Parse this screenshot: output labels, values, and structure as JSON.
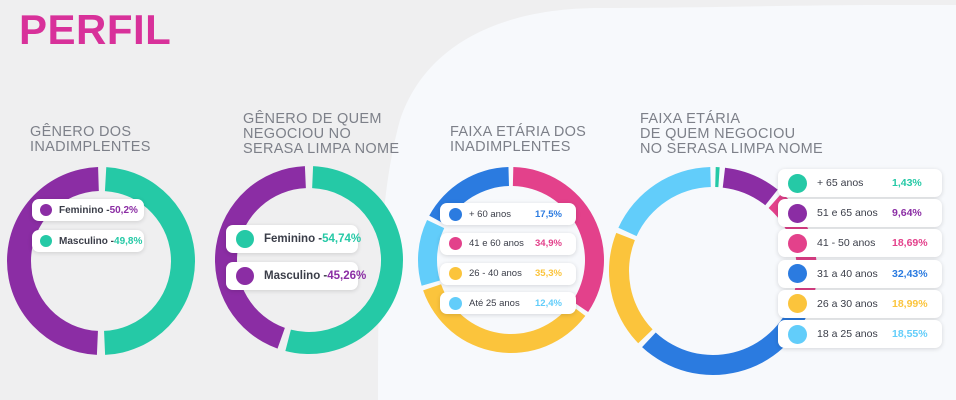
{
  "page": {
    "title": "PERFIL"
  },
  "colors": {
    "title": "#d8319a",
    "purple": "#8b2da4",
    "teal": "#25c9a6",
    "blue": "#2b7be0",
    "pink": "#e3418b",
    "yellow": "#fbc43c",
    "lightblue": "#62cdfa"
  },
  "chart_data": [
    {
      "type": "pie",
      "title": "GÊNERO DOS\nINADIMPLENTES",
      "categories": [
        "Feminino",
        "Masculino"
      ],
      "values": [
        50.2,
        49.8
      ],
      "value_labels": [
        "50,2%",
        "49,8%"
      ],
      "colors": [
        "#8b2da4",
        "#25c9a6"
      ]
    },
    {
      "type": "pie",
      "title": "GÊNERO DE QUEM\nNEGOCIOU NO\nSERASA LIMPA NOME",
      "categories": [
        "Feminino",
        "Masculino"
      ],
      "values": [
        54.74,
        45.26
      ],
      "value_labels": [
        "54,74%",
        "45,26%"
      ],
      "colors": [
        "#25c9a6",
        "#8b2da4"
      ]
    },
    {
      "type": "pie",
      "title": "FAIXA ETÁRIA DOS\nINADIMPLENTES",
      "categories": [
        "+ 60 anos",
        "41 e 60 anos",
        "26 - 40 anos",
        "Até 25 anos"
      ],
      "values": [
        17.5,
        34.9,
        35.3,
        12.4
      ],
      "value_labels": [
        "17,5%",
        "34,9%",
        "35,3%",
        "12,4%"
      ],
      "colors": [
        "#2b7be0",
        "#e3418b",
        "#fbc43c",
        "#62cdfa"
      ]
    },
    {
      "type": "pie",
      "title": "FAIXA ETÁRIA\nDE QUEM NEGOCIOU\nNO SERASA LIMPA NOME",
      "categories": [
        "+ 65 anos",
        "51 e 65 anos",
        "41 - 50 anos",
        "31 a 40 anos",
        "26 a 30 anos",
        "18 a 25 anos"
      ],
      "values": [
        1.43,
        9.64,
        18.69,
        32.43,
        18.99,
        18.55
      ],
      "value_labels": [
        "1,43%",
        "9,64%",
        "18,69%",
        "32,43%",
        "18,99%",
        "18,55%"
      ],
      "colors": [
        "#25c9a6",
        "#8b2da4",
        "#e3418b",
        "#2b7be0",
        "#fbc43c",
        "#62cdfa"
      ]
    }
  ]
}
